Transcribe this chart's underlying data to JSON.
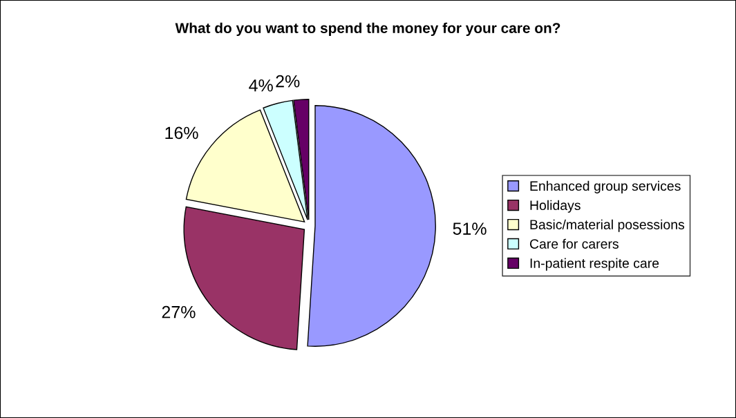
{
  "chart_data": {
    "type": "pie",
    "title": "What do you want to spend the money for your care on?",
    "categories": [
      "Enhanced group services",
      "Holidays",
      "Basic/material posessions",
      "Care for carers",
      "In-patient respite care"
    ],
    "values": [
      51,
      27,
      16,
      4,
      2
    ],
    "value_labels": [
      "51%",
      "27%",
      "16%",
      "4%",
      "2%"
    ],
    "colors": [
      "#9999ff",
      "#993366",
      "#ffffcc",
      "#ccffff",
      "#660066"
    ],
    "legend": "right"
  }
}
